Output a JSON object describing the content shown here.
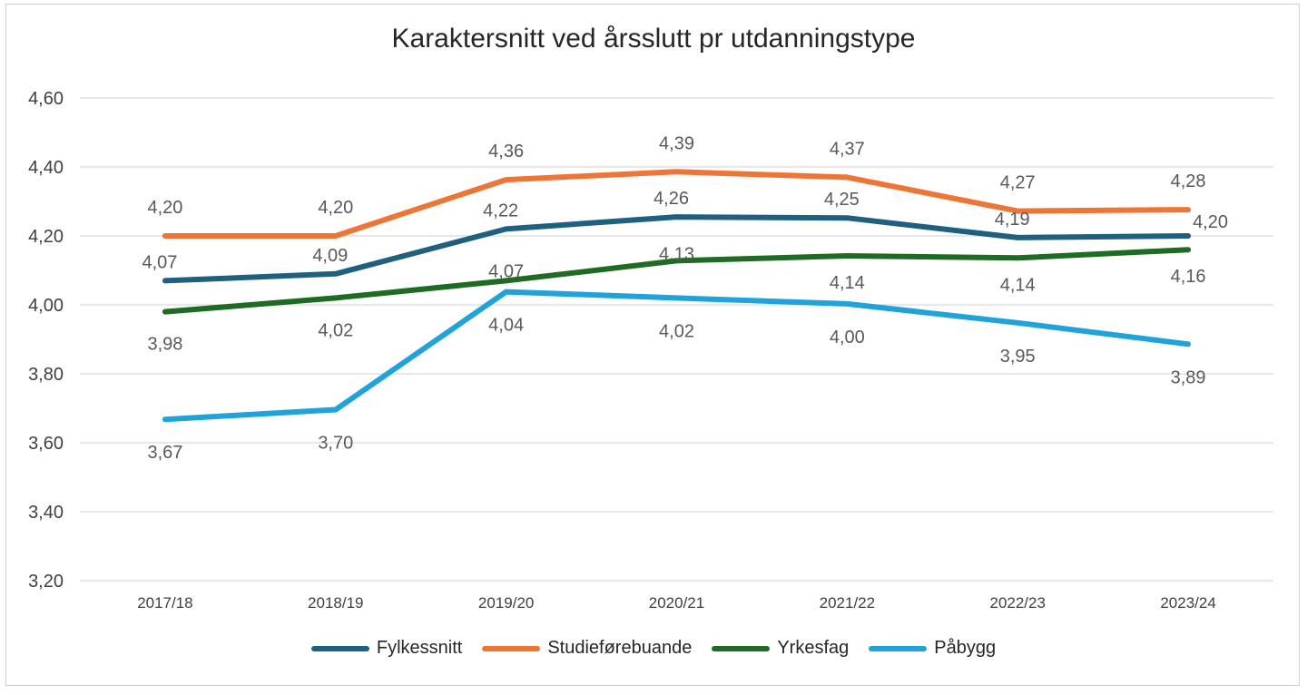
{
  "chart_data": {
    "type": "line",
    "title": "Karaktersnitt ved årsslutt pr utdanningstype",
    "xlabel": "",
    "ylabel": "",
    "categories": [
      "2017/18",
      "2018/19",
      "2019/20",
      "2020/21",
      "2021/22",
      "2022/23",
      "2023/24"
    ],
    "ylim": [
      3.2,
      4.6
    ],
    "yticks": [
      "3,20",
      "3,40",
      "3,60",
      "3,80",
      "4,00",
      "4,20",
      "4,40",
      "4,60"
    ],
    "grid": true,
    "legend_position": "bottom",
    "series": [
      {
        "name": "Fylkessnitt",
        "color": "#1f5f7f",
        "values": [
          4.07,
          4.09,
          4.22,
          4.255,
          4.252,
          4.195,
          4.2
        ],
        "labels": [
          "4,07",
          "4,09",
          "4,22",
          "4,26",
          "4,25",
          "4,19",
          "4,20"
        ]
      },
      {
        "name": "Studieførebuande",
        "color": "#ed7535",
        "values": [
          4.2,
          4.2,
          4.363,
          4.386,
          4.37,
          4.272,
          4.276
        ],
        "labels": [
          "4,20",
          "4,20",
          "4,36",
          "4,39",
          "4,37",
          "4,27",
          "4,28"
        ]
      },
      {
        "name": "Yrkesfag",
        "color": "#1f6b24",
        "values": [
          3.98,
          4.02,
          4.07,
          4.128,
          4.142,
          4.136,
          4.16
        ],
        "labels": [
          "3,98",
          "4,02",
          "4,07",
          "4,13",
          "4,14",
          "4,14",
          "4,16"
        ]
      },
      {
        "name": "Påbygg",
        "color": "#20a3d8",
        "values": [
          3.668,
          3.696,
          4.038,
          4.02,
          4.003,
          3.948,
          3.886
        ],
        "labels": [
          "3,67",
          "3,70",
          "4,04",
          "4,02",
          "4,00",
          "3,95",
          "3,89"
        ]
      }
    ]
  }
}
